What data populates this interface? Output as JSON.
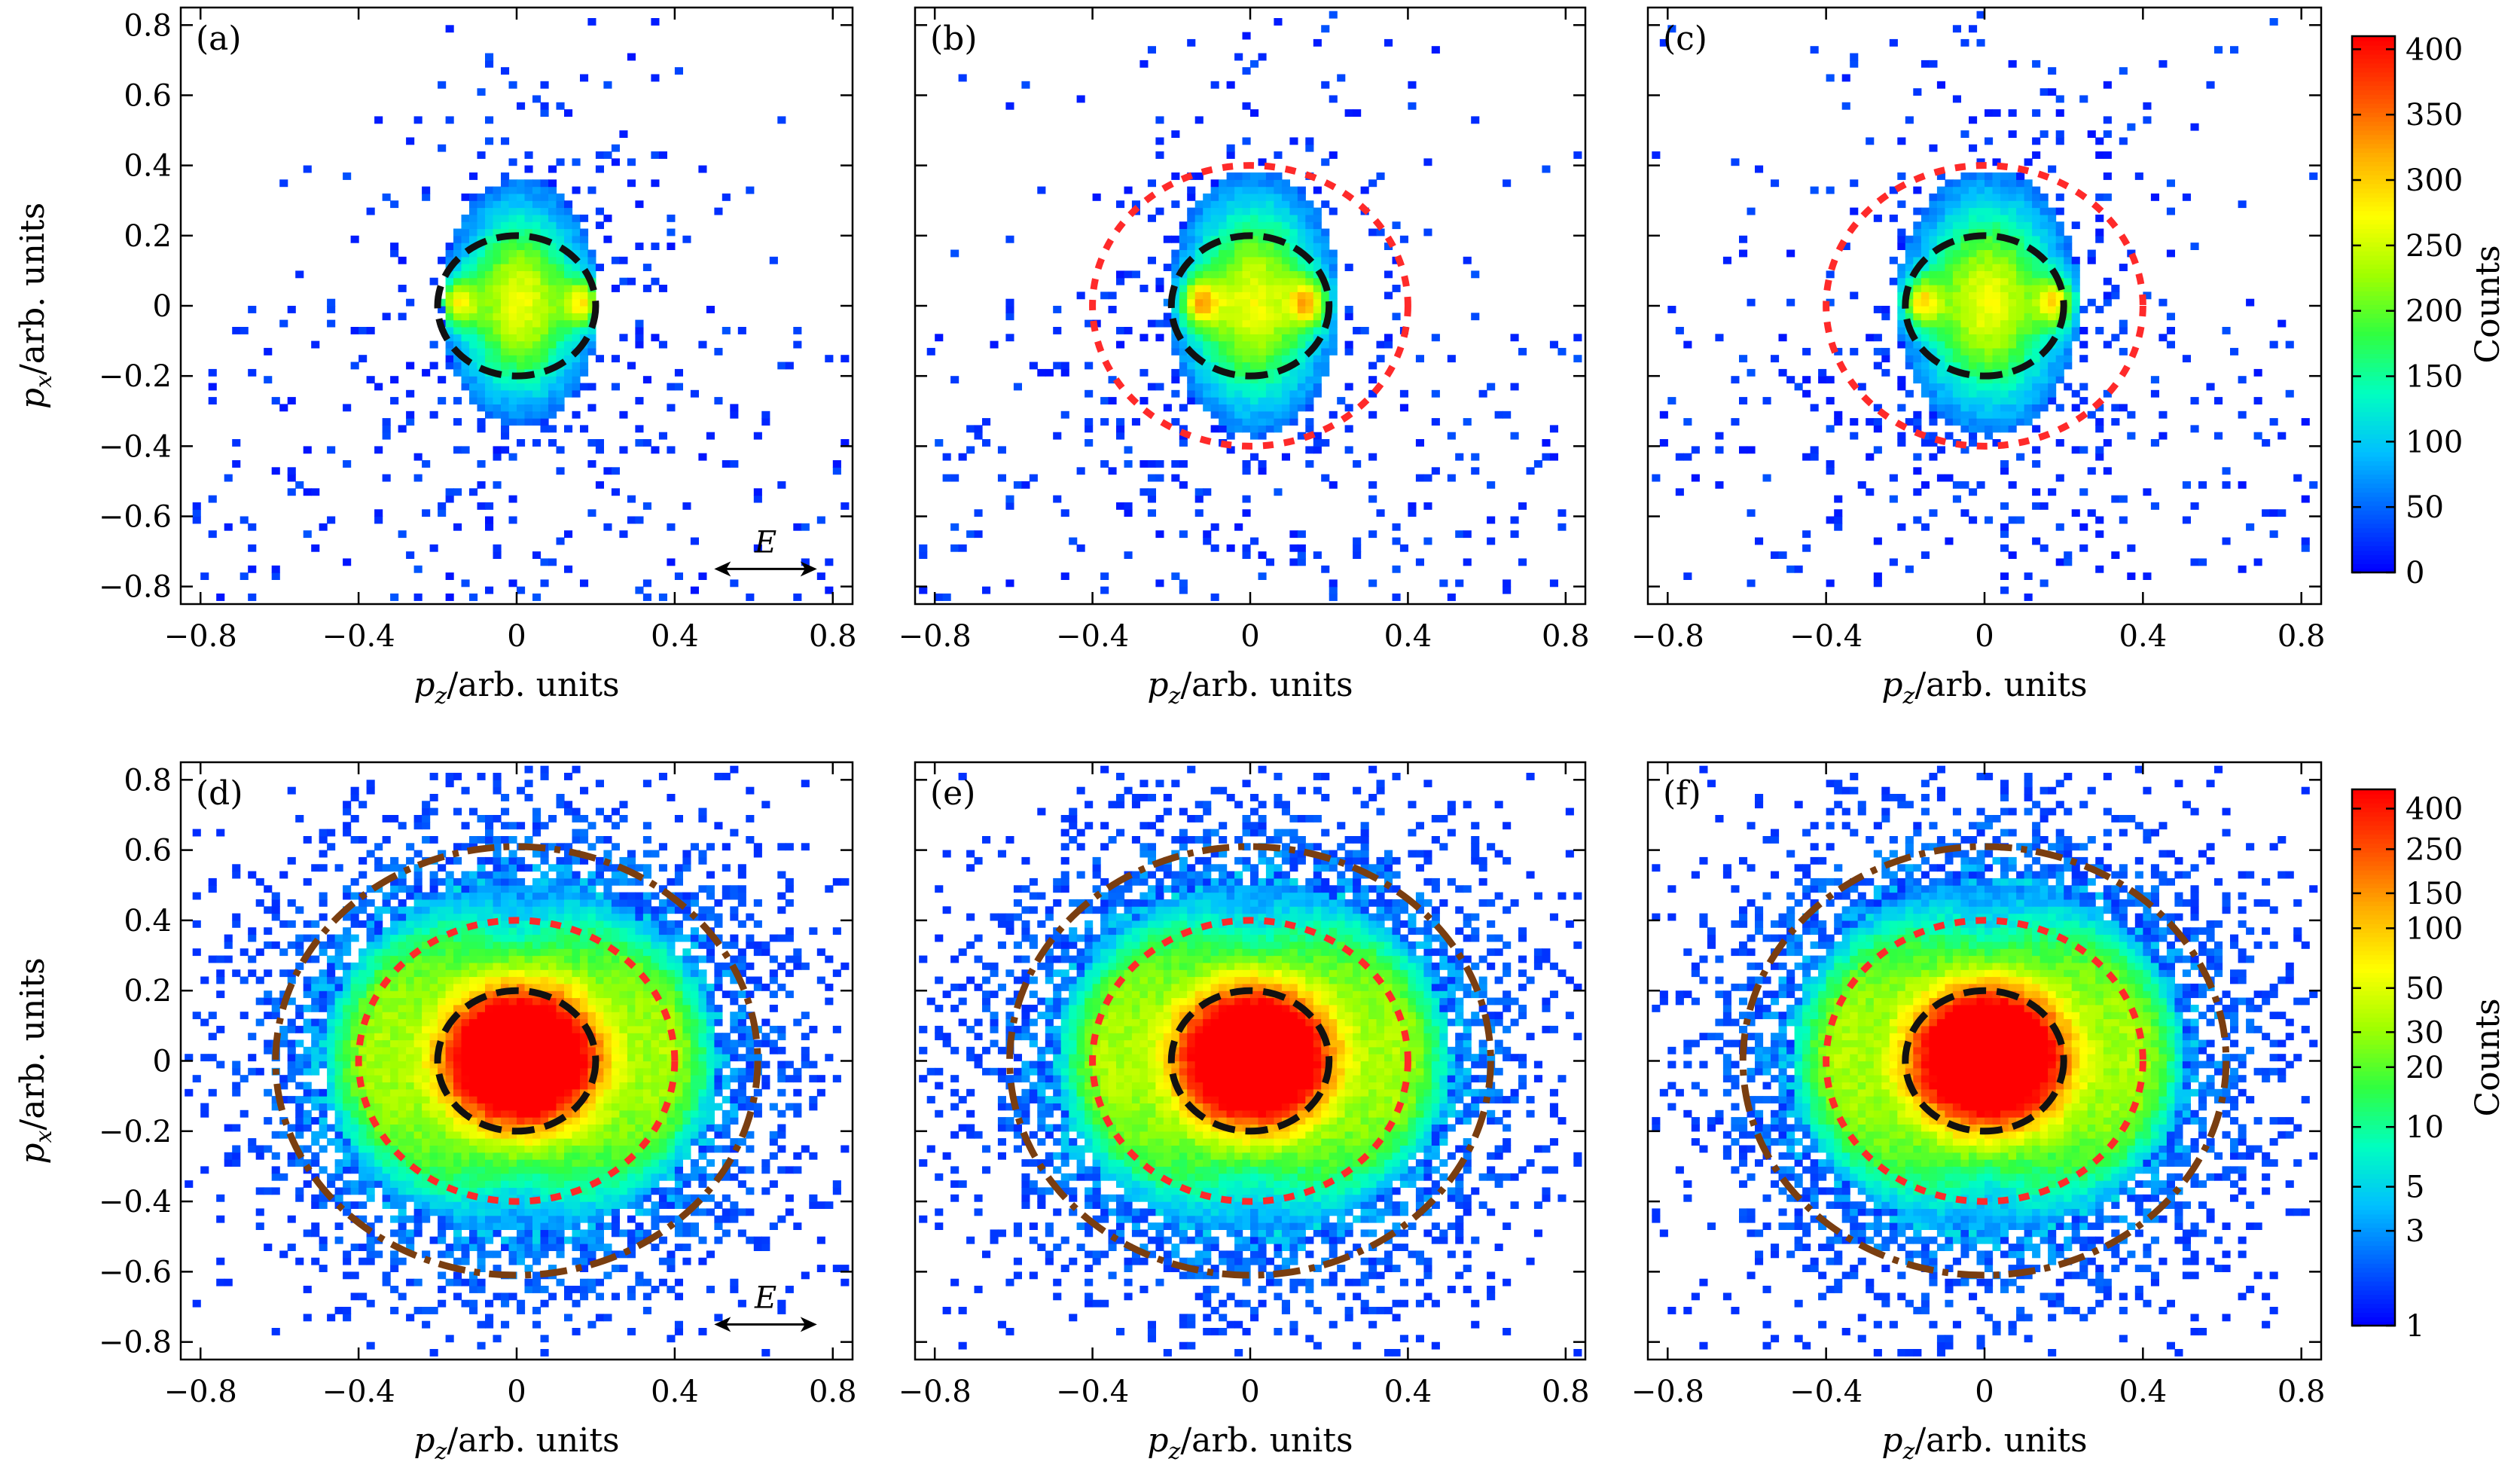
{
  "chart_data": [
    {
      "type": "heatmap",
      "panel_label": "(a)",
      "xlabel": "p_z/arb. units",
      "ylabel": "p_x/arb. units",
      "xlim": [
        -0.85,
        0.85
      ],
      "ylim": [
        -0.85,
        0.85
      ],
      "x_ticks": [
        -0.8,
        -0.4,
        0,
        0.4,
        0.8
      ],
      "y_ticks": [
        -0.8,
        -0.6,
        -0.4,
        -0.2,
        0,
        0.2,
        0.4,
        0.6,
        0.8
      ],
      "color_scale": "linear",
      "distribution": {
        "core_radius_x": 0.2,
        "core_radius_y": 0.35,
        "peaks_at_pz": [
          -0.16,
          0.16
        ],
        "peak_counts": 380
      },
      "contours": [
        {
          "style": "black-dashed",
          "center": [
            0,
            0
          ],
          "radius_x": 0.2,
          "radius_y": 0.2
        }
      ],
      "annotation": "E",
      "arrow": "double-headed, parallel to p_z"
    },
    {
      "type": "heatmap",
      "panel_label": "(b)",
      "xlabel": "p_z/arb. units",
      "xlim": [
        -0.85,
        0.85
      ],
      "ylim": [
        -0.85,
        0.85
      ],
      "x_ticks": [
        -0.8,
        -0.4,
        0,
        0.4,
        0.8
      ],
      "color_scale": "linear",
      "distribution": {
        "core_radius_x": 0.22,
        "core_radius_y": 0.38,
        "peaks_at_pz": [
          -0.14,
          0.14
        ],
        "peak_counts": 380
      },
      "contours": [
        {
          "style": "black-dashed",
          "center": [
            0,
            0
          ],
          "radius_x": 0.2,
          "radius_y": 0.2
        },
        {
          "style": "red-dotted",
          "center": [
            0,
            0
          ],
          "radius_x": 0.4,
          "radius_y": 0.4
        }
      ]
    },
    {
      "type": "heatmap",
      "panel_label": "(c)",
      "xlabel": "p_z/arb. units",
      "xlim": [
        -0.85,
        0.85
      ],
      "ylim": [
        -0.85,
        0.85
      ],
      "x_ticks": [
        -0.8,
        -0.4,
        0,
        0.4,
        0.8
      ],
      "color_scale": "linear",
      "distribution": {
        "core_radius_x": 0.23,
        "core_radius_y": 0.38,
        "peaks_at_pz": [
          -0.17,
          0.17
        ],
        "peak_counts": 400
      },
      "contours": [
        {
          "style": "black-dashed",
          "center": [
            0,
            0
          ],
          "radius_x": 0.2,
          "radius_y": 0.2
        },
        {
          "style": "red-dotted",
          "center": [
            0,
            0
          ],
          "radius_x": 0.4,
          "radius_y": 0.4
        }
      ]
    },
    {
      "type": "heatmap",
      "panel_label": "(d)",
      "xlabel": "p_z/arb. units",
      "ylabel": "p_x/arb. units",
      "xlim": [
        -0.85,
        0.85
      ],
      "ylim": [
        -0.85,
        0.85
      ],
      "x_ticks": [
        -0.8,
        -0.4,
        0,
        0.4,
        0.8
      ],
      "y_ticks": [
        -0.8,
        -0.6,
        -0.4,
        -0.2,
        0,
        0.2,
        0.4,
        0.6,
        0.8
      ],
      "color_scale": "log",
      "distribution": {
        "core_radius_x": 0.22,
        "core_radius_y": 0.22,
        "ring_radius": 0.4,
        "outer_radius": 0.62
      },
      "contours": [
        {
          "style": "black-dashed",
          "center": [
            0,
            0
          ],
          "radius_x": 0.2,
          "radius_y": 0.2
        },
        {
          "style": "red-dotted",
          "center": [
            0,
            0
          ],
          "radius_x": 0.4,
          "radius_y": 0.4
        },
        {
          "style": "brown-dashdot",
          "center": [
            0,
            0
          ],
          "radius_x": 0.61,
          "radius_y": 0.61
        }
      ],
      "annotation": "E",
      "arrow": "double-headed, parallel to p_z"
    },
    {
      "type": "heatmap",
      "panel_label": "(e)",
      "xlabel": "p_z/arb. units",
      "xlim": [
        -0.85,
        0.85
      ],
      "ylim": [
        -0.85,
        0.85
      ],
      "x_ticks": [
        -0.8,
        -0.4,
        0,
        0.4,
        0.8
      ],
      "color_scale": "log",
      "distribution": {
        "core_radius_x": 0.22,
        "core_radius_y": 0.22,
        "ring_radius": 0.4,
        "outer_radius": 0.62
      },
      "contours": [
        {
          "style": "black-dashed",
          "center": [
            0,
            0
          ],
          "radius_x": 0.2,
          "radius_y": 0.2
        },
        {
          "style": "red-dotted",
          "center": [
            0,
            0
          ],
          "radius_x": 0.4,
          "radius_y": 0.4
        },
        {
          "style": "brown-dashdot",
          "center": [
            0,
            0
          ],
          "radius_x": 0.61,
          "radius_y": 0.61
        }
      ]
    },
    {
      "type": "heatmap",
      "panel_label": "(f)",
      "xlabel": "p_z/arb. units",
      "xlim": [
        -0.85,
        0.85
      ],
      "ylim": [
        -0.85,
        0.85
      ],
      "x_ticks": [
        -0.8,
        -0.4,
        0,
        0.4,
        0.8
      ],
      "color_scale": "log",
      "distribution": {
        "core_radius_x": 0.22,
        "core_radius_y": 0.22,
        "ring_radius": 0.4,
        "outer_radius": 0.62
      },
      "contours": [
        {
          "style": "black-dashed",
          "center": [
            0,
            0
          ],
          "radius_x": 0.2,
          "radius_y": 0.2
        },
        {
          "style": "red-dotted",
          "center": [
            0,
            0
          ],
          "radius_x": 0.4,
          "radius_y": 0.4
        },
        {
          "style": "brown-dashdot",
          "center": [
            0,
            0
          ],
          "radius_x": 0.61,
          "radius_y": 0.61
        }
      ]
    }
  ],
  "colorbars": [
    {
      "scale": "linear",
      "label": "Counts",
      "range": [
        0,
        410
      ],
      "ticks": [
        0,
        50,
        100,
        150,
        200,
        250,
        300,
        350,
        400
      ]
    },
    {
      "scale": "log",
      "label": "Counts",
      "range": [
        1,
        500
      ],
      "ticks": [
        1,
        3,
        5,
        10,
        20,
        30,
        50,
        100,
        150,
        250,
        400
      ]
    }
  ],
  "contour_colors": {
    "black-dashed": "#111111",
    "red-dotted": "#ff2a2a",
    "brown-dashdot": "#7a3e10"
  },
  "colormap": [
    "#0000ff",
    "#0060ff",
    "#00c0ff",
    "#00ffc0",
    "#30ff40",
    "#a0ff00",
    "#ffff00",
    "#ffb000",
    "#ff5000",
    "#ff0000"
  ]
}
